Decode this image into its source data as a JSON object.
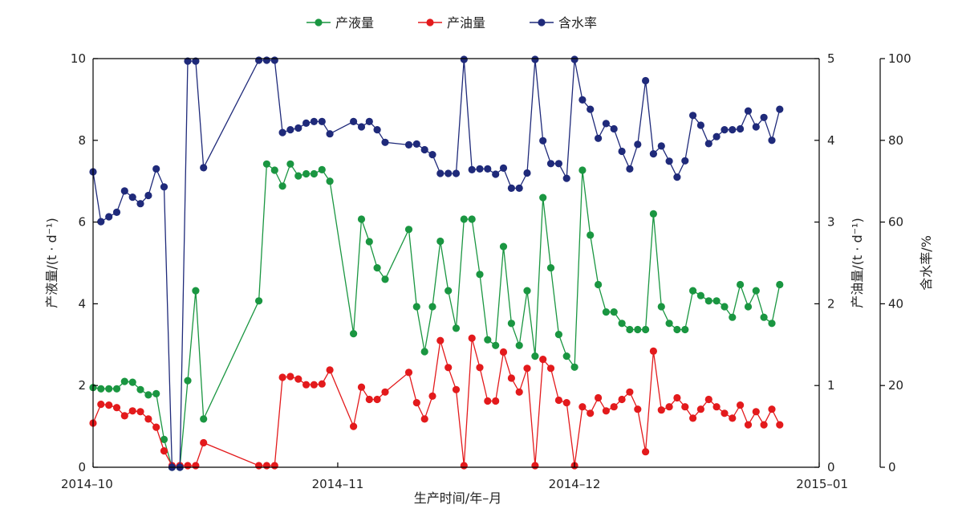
{
  "chart_data": {
    "type": "line",
    "xlabel": "生产时间/年–月",
    "x_range": [
      "2014-10-01",
      "2015-01-01"
    ],
    "x_ticks": [
      {
        "date": "2014-10-01",
        "label": "2014–10"
      },
      {
        "date": "2014-11-01",
        "label": "2014–11"
      },
      {
        "date": "2014-12-01",
        "label": "2014–12"
      },
      {
        "date": "2015-01-01",
        "label": "2015–01"
      }
    ],
    "y_axes": {
      "left": {
        "label": "产液量/(t · d⁻¹)",
        "min": 0,
        "max": 10,
        "ticks": [
          0,
          2,
          4,
          6,
          8,
          10
        ]
      },
      "right1": {
        "label": "产油量/(t · d⁻¹)",
        "min": 0,
        "max": 5,
        "ticks": [
          0,
          1,
          2,
          3,
          4,
          5
        ]
      },
      "right2": {
        "label": "含水率/%",
        "min": 0,
        "max": 100,
        "ticks": [
          0,
          20,
          40,
          60,
          80,
          100
        ]
      }
    },
    "legend_position": "top-center",
    "grid": false,
    "series": [
      {
        "name": "产液量",
        "axis": "left",
        "color": "#1a9641",
        "points": [
          [
            "2014-10-01",
            1.95
          ],
          [
            "2014-10-02",
            1.92
          ],
          [
            "2014-10-03",
            1.92
          ],
          [
            "2014-10-04",
            1.92
          ],
          [
            "2014-10-05",
            2.1
          ],
          [
            "2014-10-06",
            2.08
          ],
          [
            "2014-10-07",
            1.9
          ],
          [
            "2014-10-08",
            1.77
          ],
          [
            "2014-10-09",
            1.8
          ],
          [
            "2014-10-10",
            0.68
          ],
          [
            "2014-10-11",
            0.0
          ],
          [
            "2014-10-12",
            0.0
          ],
          [
            "2014-10-13",
            2.12
          ],
          [
            "2014-10-14",
            4.32
          ],
          [
            "2014-10-15",
            1.18
          ],
          [
            "2014-10-22",
            4.07
          ],
          [
            "2014-10-23",
            7.42
          ],
          [
            "2014-10-24",
            7.27
          ],
          [
            "2014-10-25",
            6.88
          ],
          [
            "2014-10-26",
            7.42
          ],
          [
            "2014-10-27",
            7.13
          ],
          [
            "2014-10-28",
            7.18
          ],
          [
            "2014-10-29",
            7.18
          ],
          [
            "2014-10-30",
            7.28
          ],
          [
            "2014-10-31",
            7.0
          ],
          [
            "2014-11-03",
            3.27
          ],
          [
            "2014-11-04",
            6.07
          ],
          [
            "2014-11-05",
            5.52
          ],
          [
            "2014-11-06",
            4.88
          ],
          [
            "2014-11-07",
            4.6
          ],
          [
            "2014-11-10",
            5.82
          ],
          [
            "2014-11-11",
            3.93
          ],
          [
            "2014-11-12",
            2.83
          ],
          [
            "2014-11-13",
            3.93
          ],
          [
            "2014-11-14",
            5.53
          ],
          [
            "2014-11-15",
            4.32
          ],
          [
            "2014-11-16",
            3.4
          ],
          [
            "2014-11-17",
            6.07
          ],
          [
            "2014-11-18",
            6.07
          ],
          [
            "2014-11-19",
            4.72
          ],
          [
            "2014-11-20",
            3.12
          ],
          [
            "2014-11-21",
            2.98
          ],
          [
            "2014-11-22",
            5.4
          ],
          [
            "2014-11-23",
            3.52
          ],
          [
            "2014-11-24",
            2.98
          ],
          [
            "2014-11-25",
            4.32
          ],
          [
            "2014-11-26",
            2.72
          ],
          [
            "2014-11-27",
            6.6
          ],
          [
            "2014-11-28",
            4.88
          ],
          [
            "2014-11-29",
            3.25
          ],
          [
            "2014-11-30",
            2.72
          ],
          [
            "2014-12-01",
            2.45
          ],
          [
            "2014-12-02",
            7.27
          ],
          [
            "2014-12-03",
            5.68
          ],
          [
            "2014-12-04",
            4.47
          ],
          [
            "2014-12-05",
            3.8
          ],
          [
            "2014-12-06",
            3.8
          ],
          [
            "2014-12-07",
            3.52
          ],
          [
            "2014-12-08",
            3.37
          ],
          [
            "2014-12-09",
            3.37
          ],
          [
            "2014-12-10",
            3.37
          ],
          [
            "2014-12-11",
            6.2
          ],
          [
            "2014-12-12",
            3.93
          ],
          [
            "2014-12-13",
            3.52
          ],
          [
            "2014-12-14",
            3.37
          ],
          [
            "2014-12-15",
            3.37
          ],
          [
            "2014-12-16",
            4.32
          ],
          [
            "2014-12-17",
            4.2
          ],
          [
            "2014-12-18",
            4.07
          ],
          [
            "2014-12-19",
            4.07
          ],
          [
            "2014-12-20",
            3.93
          ],
          [
            "2014-12-21",
            3.67
          ],
          [
            "2014-12-22",
            4.47
          ],
          [
            "2014-12-23",
            3.93
          ],
          [
            "2014-12-24",
            4.32
          ],
          [
            "2014-12-25",
            3.67
          ],
          [
            "2014-12-26",
            3.52
          ],
          [
            "2014-12-27",
            4.47
          ]
        ]
      },
      {
        "name": "产油量",
        "axis": "right1",
        "color": "#e31a1c",
        "points": [
          [
            "2014-10-01",
            0.54
          ],
          [
            "2014-10-02",
            0.77
          ],
          [
            "2014-10-03",
            0.76
          ],
          [
            "2014-10-04",
            0.73
          ],
          [
            "2014-10-05",
            0.63
          ],
          [
            "2014-10-06",
            0.69
          ],
          [
            "2014-10-07",
            0.68
          ],
          [
            "2014-10-08",
            0.59
          ],
          [
            "2014-10-09",
            0.49
          ],
          [
            "2014-10-10",
            0.2
          ],
          [
            "2014-10-11",
            0.02
          ],
          [
            "2014-10-12",
            0.02
          ],
          [
            "2014-10-13",
            0.02
          ],
          [
            "2014-10-14",
            0.02
          ],
          [
            "2014-10-15",
            0.3
          ],
          [
            "2014-10-22",
            0.02
          ],
          [
            "2014-10-23",
            0.02
          ],
          [
            "2014-10-24",
            0.02
          ],
          [
            "2014-10-25",
            1.1
          ],
          [
            "2014-10-26",
            1.11
          ],
          [
            "2014-10-27",
            1.08
          ],
          [
            "2014-10-28",
            1.01
          ],
          [
            "2014-10-29",
            1.01
          ],
          [
            "2014-10-30",
            1.02
          ],
          [
            "2014-10-31",
            1.19
          ],
          [
            "2014-11-03",
            0.5
          ],
          [
            "2014-11-04",
            0.98
          ],
          [
            "2014-11-05",
            0.83
          ],
          [
            "2014-11-06",
            0.83
          ],
          [
            "2014-11-07",
            0.92
          ],
          [
            "2014-11-10",
            1.16
          ],
          [
            "2014-11-11",
            0.79
          ],
          [
            "2014-11-12",
            0.59
          ],
          [
            "2014-11-13",
            0.87
          ],
          [
            "2014-11-14",
            1.55
          ],
          [
            "2014-11-15",
            1.22
          ],
          [
            "2014-11-16",
            0.95
          ],
          [
            "2014-11-17",
            0.02
          ],
          [
            "2014-11-18",
            1.58
          ],
          [
            "2014-11-19",
            1.22
          ],
          [
            "2014-11-20",
            0.81
          ],
          [
            "2014-11-21",
            0.81
          ],
          [
            "2014-11-22",
            1.41
          ],
          [
            "2014-11-23",
            1.09
          ],
          [
            "2014-11-24",
            0.92
          ],
          [
            "2014-11-25",
            1.21
          ],
          [
            "2014-11-26",
            0.02
          ],
          [
            "2014-11-27",
            1.32
          ],
          [
            "2014-11-28",
            1.21
          ],
          [
            "2014-11-29",
            0.82
          ],
          [
            "2014-11-30",
            0.79
          ],
          [
            "2014-12-01",
            0.02
          ],
          [
            "2014-12-02",
            0.74
          ],
          [
            "2014-12-03",
            0.66
          ],
          [
            "2014-12-04",
            0.85
          ],
          [
            "2014-12-05",
            0.69
          ],
          [
            "2014-12-06",
            0.74
          ],
          [
            "2014-12-07",
            0.83
          ],
          [
            "2014-12-08",
            0.92
          ],
          [
            "2014-12-09",
            0.71
          ],
          [
            "2014-12-10",
            0.19
          ],
          [
            "2014-12-11",
            1.42
          ],
          [
            "2014-12-12",
            0.7
          ],
          [
            "2014-12-13",
            0.74
          ],
          [
            "2014-12-14",
            0.85
          ],
          [
            "2014-12-15",
            0.74
          ],
          [
            "2014-12-16",
            0.6
          ],
          [
            "2014-12-17",
            0.71
          ],
          [
            "2014-12-18",
            0.83
          ],
          [
            "2014-12-19",
            0.74
          ],
          [
            "2014-12-20",
            0.66
          ],
          [
            "2014-12-21",
            0.6
          ],
          [
            "2014-12-22",
            0.76
          ],
          [
            "2014-12-23",
            0.52
          ],
          [
            "2014-12-24",
            0.68
          ],
          [
            "2014-12-25",
            0.52
          ],
          [
            "2014-12-26",
            0.71
          ],
          [
            "2014-12-27",
            0.52
          ]
        ]
      },
      {
        "name": "含水率",
        "axis": "right2",
        "color": "#1f2a7a",
        "points": [
          [
            "2014-10-01",
            72.3
          ],
          [
            "2014-10-02",
            60.1
          ],
          [
            "2014-10-03",
            61.3
          ],
          [
            "2014-10-04",
            62.4
          ],
          [
            "2014-10-05",
            67.6
          ],
          [
            "2014-10-06",
            66.1
          ],
          [
            "2014-10-07",
            64.5
          ],
          [
            "2014-10-08",
            66.5
          ],
          [
            "2014-10-09",
            73.0
          ],
          [
            "2014-10-10",
            68.6
          ],
          [
            "2014-10-11",
            0.0
          ],
          [
            "2014-10-12",
            0.0
          ],
          [
            "2014-10-13",
            99.4
          ],
          [
            "2014-10-14",
            99.4
          ],
          [
            "2014-10-15",
            73.3
          ],
          [
            "2014-10-22",
            99.6
          ],
          [
            "2014-10-23",
            99.6
          ],
          [
            "2014-10-24",
            99.6
          ],
          [
            "2014-10-25",
            81.9
          ],
          [
            "2014-10-26",
            82.6
          ],
          [
            "2014-10-27",
            83.0
          ],
          [
            "2014-10-28",
            84.2
          ],
          [
            "2014-10-29",
            84.6
          ],
          [
            "2014-10-30",
            84.6
          ],
          [
            "2014-10-31",
            81.6
          ],
          [
            "2014-11-03",
            84.6
          ],
          [
            "2014-11-04",
            83.3
          ],
          [
            "2014-11-05",
            84.6
          ],
          [
            "2014-11-06",
            82.6
          ],
          [
            "2014-11-07",
            79.5
          ],
          [
            "2014-11-10",
            78.9
          ],
          [
            "2014-11-11",
            79.1
          ],
          [
            "2014-11-12",
            77.7
          ],
          [
            "2014-11-13",
            76.5
          ],
          [
            "2014-11-14",
            71.9
          ],
          [
            "2014-11-15",
            71.9
          ],
          [
            "2014-11-16",
            71.9
          ],
          [
            "2014-11-17",
            99.8
          ],
          [
            "2014-11-18",
            72.8
          ],
          [
            "2014-11-19",
            73.0
          ],
          [
            "2014-11-20",
            73.0
          ],
          [
            "2014-11-21",
            71.7
          ],
          [
            "2014-11-22",
            73.2
          ],
          [
            "2014-11-23",
            68.3
          ],
          [
            "2014-11-24",
            68.3
          ],
          [
            "2014-11-25",
            72.0
          ],
          [
            "2014-11-26",
            99.8
          ],
          [
            "2014-11-27",
            79.9
          ],
          [
            "2014-11-28",
            74.3
          ],
          [
            "2014-11-29",
            74.3
          ],
          [
            "2014-11-30",
            70.7
          ],
          [
            "2014-12-01",
            99.8
          ],
          [
            "2014-12-02",
            89.9
          ],
          [
            "2014-12-03",
            87.6
          ],
          [
            "2014-12-04",
            80.5
          ],
          [
            "2014-12-05",
            84.1
          ],
          [
            "2014-12-06",
            82.8
          ],
          [
            "2014-12-07",
            77.3
          ],
          [
            "2014-12-08",
            73.0
          ],
          [
            "2014-12-09",
            79.0
          ],
          [
            "2014-12-10",
            94.6
          ],
          [
            "2014-12-11",
            76.7
          ],
          [
            "2014-12-12",
            78.6
          ],
          [
            "2014-12-13",
            74.9
          ],
          [
            "2014-12-14",
            71.0
          ],
          [
            "2014-12-15",
            75.0
          ],
          [
            "2014-12-16",
            86.1
          ],
          [
            "2014-12-17",
            83.7
          ],
          [
            "2014-12-18",
            79.2
          ],
          [
            "2014-12-19",
            80.9
          ],
          [
            "2014-12-20",
            82.6
          ],
          [
            "2014-12-21",
            82.6
          ],
          [
            "2014-12-22",
            82.8
          ],
          [
            "2014-12-23",
            87.2
          ],
          [
            "2014-12-24",
            83.3
          ],
          [
            "2014-12-25",
            85.6
          ],
          [
            "2014-12-26",
            80.0
          ],
          [
            "2014-12-27",
            87.6
          ]
        ]
      }
    ]
  }
}
